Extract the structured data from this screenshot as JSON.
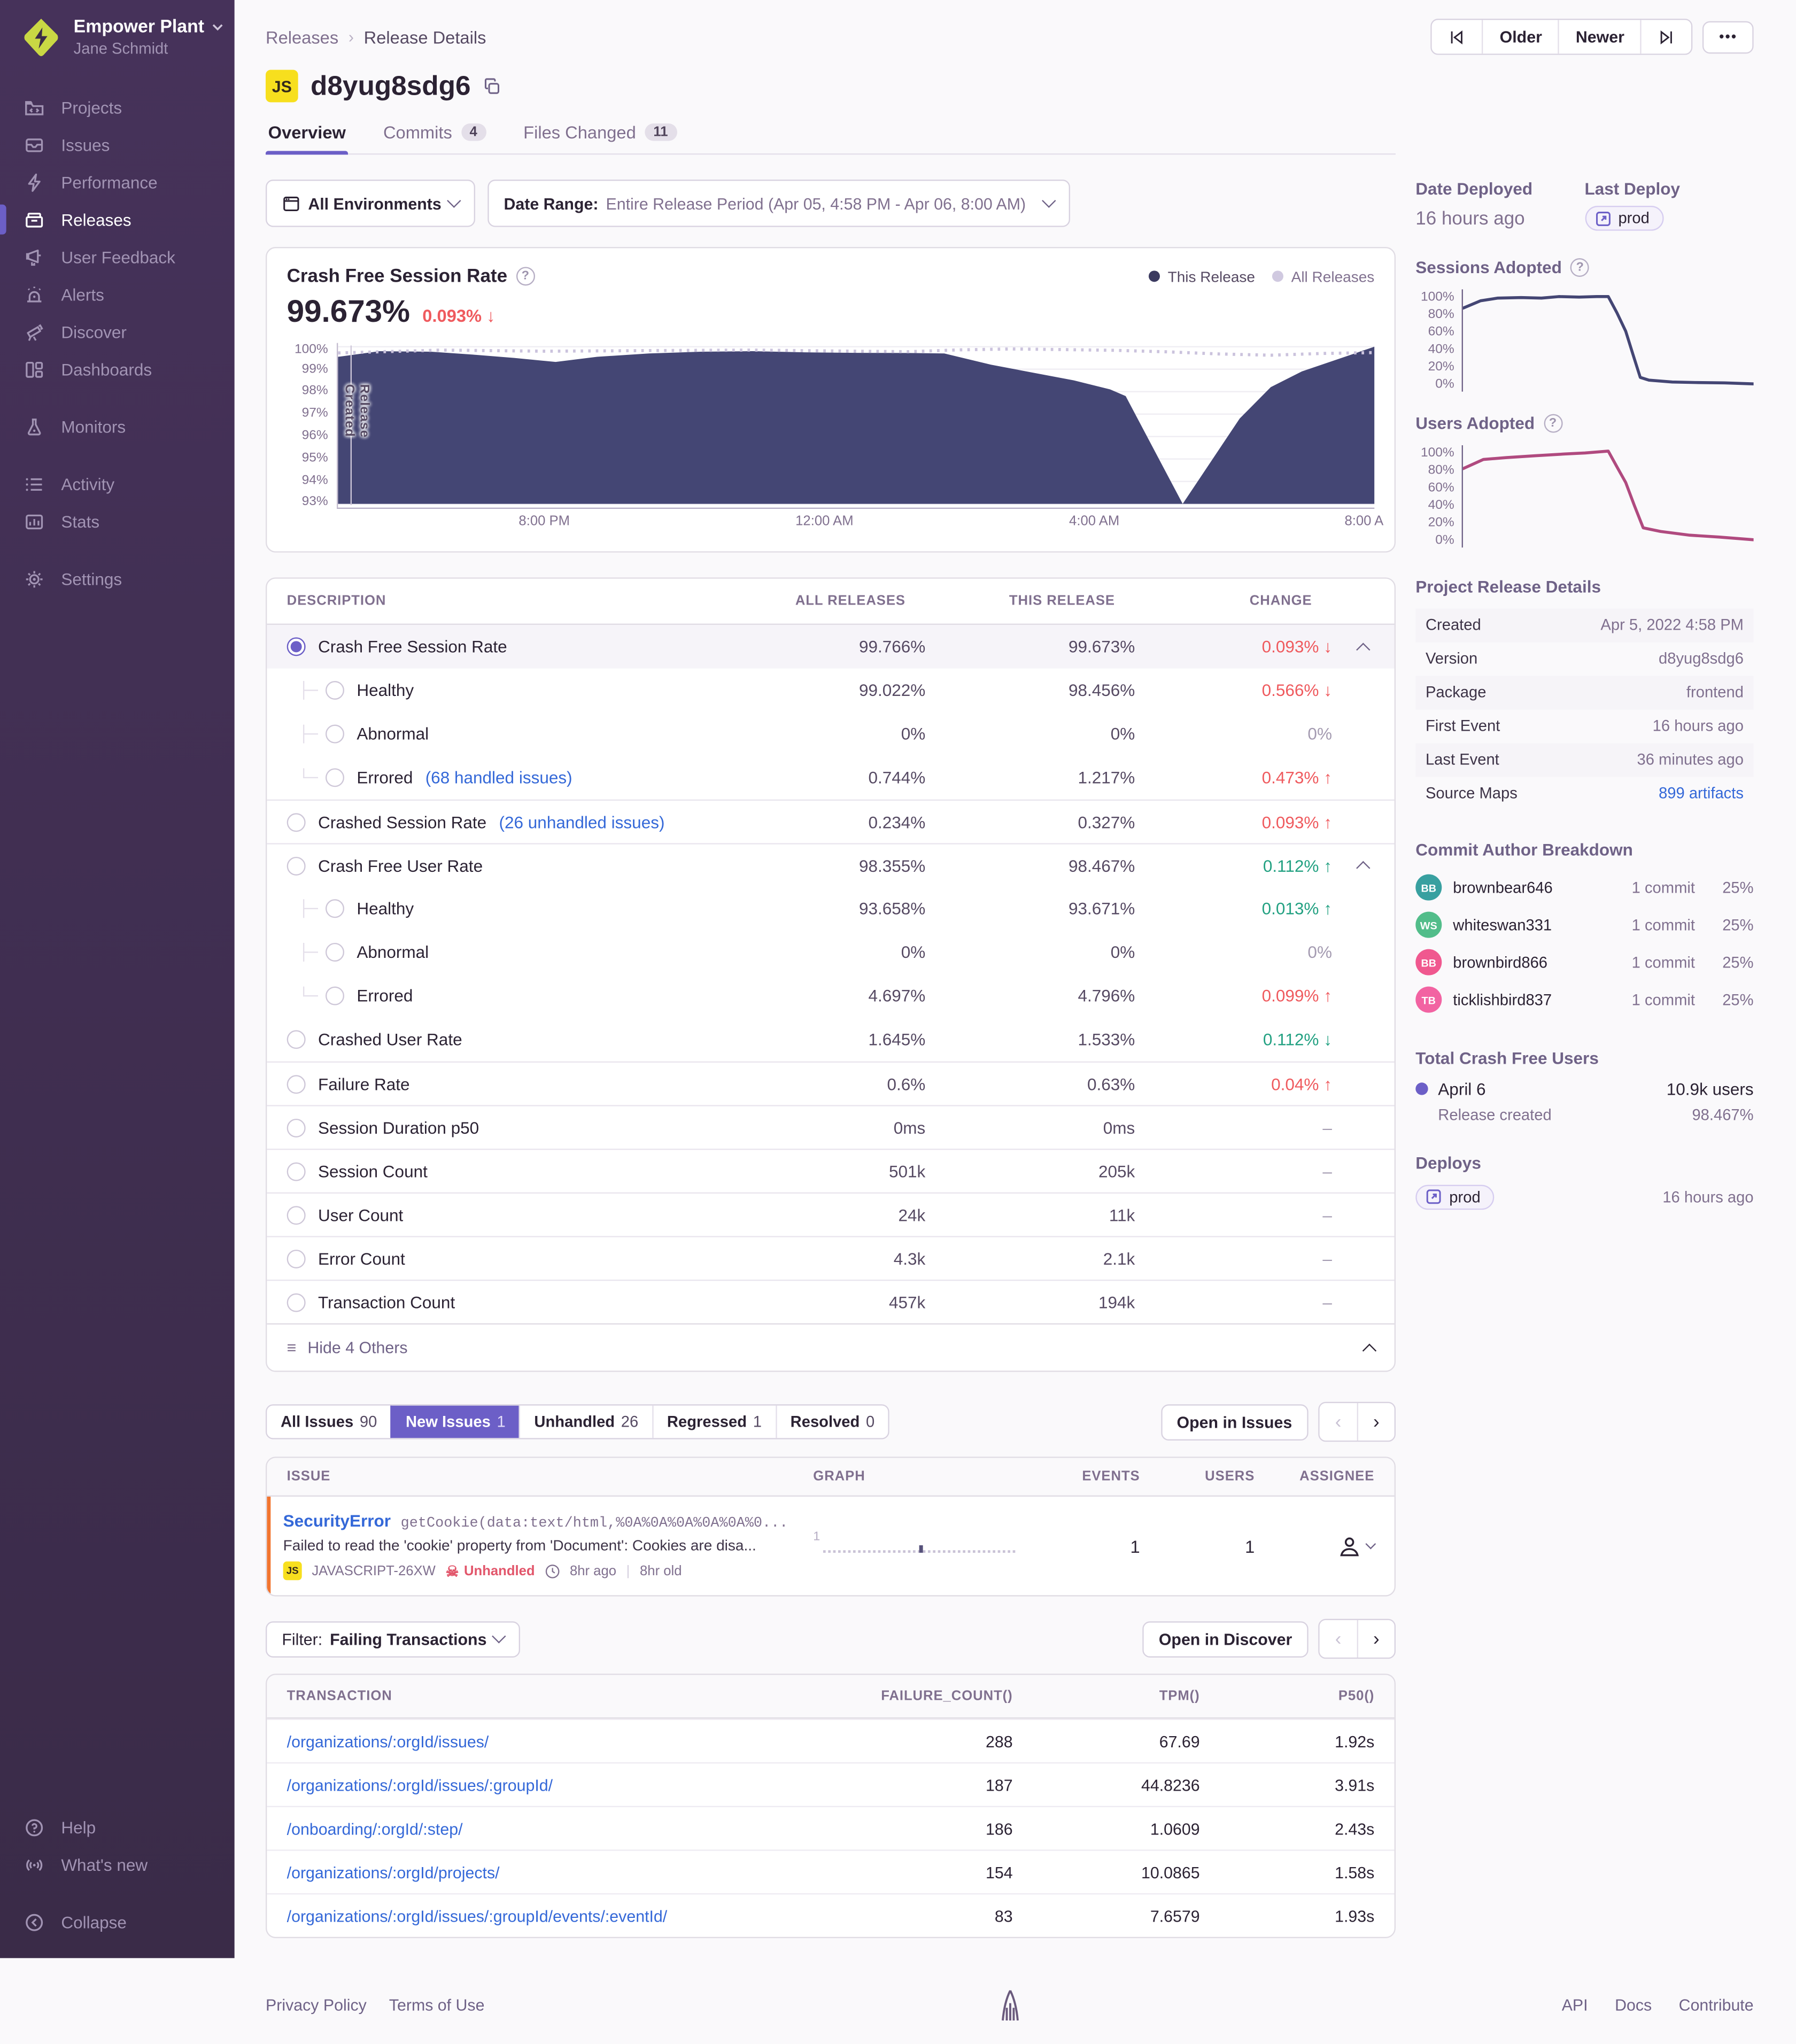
{
  "icons": {
    "more": "•••",
    "skull": "☠",
    "hide_list": "≡",
    "prev": "‹",
    "next": "›",
    "question": "?"
  },
  "sidebar": {
    "org_name": "Empower Plant",
    "user_name": "Jane Schmidt",
    "items": [
      {
        "label": "Projects"
      },
      {
        "label": "Issues"
      },
      {
        "label": "Performance"
      },
      {
        "label": "Releases"
      },
      {
        "label": "User Feedback"
      },
      {
        "label": "Alerts"
      },
      {
        "label": "Discover"
      },
      {
        "label": "Dashboards"
      },
      {
        "label": "Monitors"
      },
      {
        "label": "Activity"
      },
      {
        "label": "Stats"
      },
      {
        "label": "Settings"
      }
    ],
    "help": "Help",
    "whats_new": "What's new",
    "collapse": "Collapse"
  },
  "header": {
    "breadcrumb_1": "Releases",
    "breadcrumb_2": "Release Details",
    "older": "Older",
    "newer": "Newer",
    "project_badge": "JS",
    "title": "d8yug8sdg6",
    "tab_overview": "Overview",
    "tab_commits": "Commits",
    "tab_commits_count": "4",
    "tab_files": "Files Changed",
    "tab_files_count": "11"
  },
  "filters": {
    "environments": "All Environments",
    "date_label": "Date Range:",
    "date_value": "Entire Release Period (Apr 05, 4:58 PM - Apr 06, 8:00 AM)"
  },
  "session_chart": {
    "title": "Crash Free Session Rate",
    "big_value": "99.673%",
    "delta": "0.093% ↓",
    "legend_this": "This Release",
    "legend_all": "All Releases",
    "annotation": "Release Created"
  },
  "chart_data": {
    "session_rate": {
      "type": "area",
      "ylim": [
        93,
        100
      ],
      "yticks": [
        "100%",
        "99%",
        "98%",
        "97%",
        "96%",
        "95%",
        "94%",
        "93%"
      ],
      "xticks": [
        "8:00 PM",
        "12:00 AM",
        "4:00 AM",
        "8:00 A"
      ],
      "series": [
        {
          "name": "This Release",
          "color": "#444674",
          "points": [
            [
              0,
              99.55
            ],
            [
              0.04,
              99.8
            ],
            [
              0.09,
              99.78
            ],
            [
              0.13,
              99.65
            ],
            [
              0.17,
              99.5
            ],
            [
              0.21,
              99.32
            ],
            [
              0.25,
              99.55
            ],
            [
              0.3,
              99.7
            ],
            [
              0.35,
              99.78
            ],
            [
              0.4,
              99.8
            ],
            [
              0.45,
              99.75
            ],
            [
              0.5,
              99.73
            ],
            [
              0.55,
              99.72
            ],
            [
              0.585,
              99.7
            ],
            [
              0.63,
              99.2
            ],
            [
              0.67,
              98.85
            ],
            [
              0.71,
              98.5
            ],
            [
              0.745,
              98.1
            ],
            [
              0.76,
              97.8
            ],
            [
              0.815,
              93.0
            ],
            [
              0.87,
              96.8
            ],
            [
              0.9,
              98.2
            ],
            [
              0.93,
              98.9
            ],
            [
              1,
              100
            ]
          ]
        },
        {
          "name": "All Releases",
          "color": "#cbc3dd",
          "style": "dotted",
          "points": [
            [
              0,
              99.72
            ],
            [
              0.1,
              99.85
            ],
            [
              0.2,
              99.8
            ],
            [
              0.3,
              99.83
            ],
            [
              0.4,
              99.85
            ],
            [
              0.5,
              99.8
            ],
            [
              0.55,
              99.78
            ],
            [
              0.6,
              99.86
            ],
            [
              0.65,
              99.9
            ],
            [
              0.7,
              99.87
            ],
            [
              0.75,
              99.84
            ],
            [
              0.8,
              99.77
            ],
            [
              0.85,
              99.68
            ],
            [
              0.9,
              99.62
            ],
            [
              0.95,
              99.7
            ],
            [
              1,
              99.74
            ]
          ]
        }
      ]
    },
    "sessions_adopted": {
      "type": "line",
      "color": "#444674",
      "ylim": [
        0,
        100
      ],
      "yticks": [
        "100%",
        "80%",
        "60%",
        "40%",
        "20%",
        "0%"
      ],
      "points": [
        [
          0,
          85
        ],
        [
          0.06,
          93
        ],
        [
          0.12,
          96
        ],
        [
          0.2,
          96.5
        ],
        [
          0.27,
          96
        ],
        [
          0.33,
          97.5
        ],
        [
          0.4,
          97
        ],
        [
          0.46,
          97.5
        ],
        [
          0.5,
          97.5
        ],
        [
          0.53,
          80
        ],
        [
          0.56,
          60
        ],
        [
          0.585,
          35
        ],
        [
          0.61,
          10
        ],
        [
          0.64,
          7
        ],
        [
          0.72,
          5
        ],
        [
          0.8,
          4.5
        ],
        [
          0.9,
          4
        ],
        [
          1,
          3
        ]
      ]
    },
    "users_adopted": {
      "type": "line",
      "color": "#b04a7f",
      "ylim": [
        0,
        100
      ],
      "yticks": [
        "100%",
        "80%",
        "60%",
        "40%",
        "20%",
        "0%"
      ],
      "points": [
        [
          0,
          80
        ],
        [
          0.07,
          90
        ],
        [
          0.15,
          92
        ],
        [
          0.25,
          94
        ],
        [
          0.35,
          96
        ],
        [
          0.42,
          97
        ],
        [
          0.5,
          99
        ],
        [
          0.53,
          82
        ],
        [
          0.56,
          65
        ],
        [
          0.59,
          40
        ],
        [
          0.62,
          16
        ],
        [
          0.68,
          12
        ],
        [
          0.78,
          8
        ],
        [
          0.88,
          6
        ],
        [
          1,
          3
        ]
      ]
    }
  },
  "metrics_table": {
    "col_description": "DESCRIPTION",
    "col_all": "ALL RELEASES",
    "col_this": "THIS RELEASE",
    "col_change": "CHANGE",
    "rows": [
      {
        "label": "Crash Free Session Rate",
        "all": "99.766%",
        "this": "99.673%",
        "change": "0.093%",
        "dir": "↓"
      },
      {
        "label": "Healthy",
        "all": "99.022%",
        "this": "98.456%",
        "change": "0.566%",
        "dir": "↓"
      },
      {
        "label": "Abnormal",
        "all": "0%",
        "this": "0%",
        "change": "0%",
        "dir": ""
      },
      {
        "label": "Errored",
        "link": "(68 handled issues)",
        "all": "0.744%",
        "this": "1.217%",
        "change": "0.473%",
        "dir": "↑"
      },
      {
        "label": "Crashed Session Rate",
        "link": "(26 unhandled issues)",
        "all": "0.234%",
        "this": "0.327%",
        "change": "0.093%",
        "dir": "↑"
      },
      {
        "label": "Crash Free User Rate",
        "all": "98.355%",
        "this": "98.467%",
        "change": "0.112%",
        "dir": "↑"
      },
      {
        "label": "Healthy",
        "all": "93.658%",
        "this": "93.671%",
        "change": "0.013%",
        "dir": "↑"
      },
      {
        "label": "Abnormal",
        "all": "0%",
        "this": "0%",
        "change": "0%",
        "dir": ""
      },
      {
        "label": "Errored",
        "all": "4.697%",
        "this": "4.796%",
        "change": "0.099%",
        "dir": "↑"
      },
      {
        "label": "Crashed User Rate",
        "all": "1.645%",
        "this": "1.533%",
        "change": "0.112%",
        "dir": "↓"
      },
      {
        "label": "Failure Rate",
        "all": "0.6%",
        "this": "0.63%",
        "change": "0.04%",
        "dir": "↑"
      },
      {
        "label": "Session Duration p50",
        "all": "0ms",
        "this": "0ms",
        "change": "–",
        "dir": ""
      },
      {
        "label": "Session Count",
        "all": "501k",
        "this": "205k",
        "change": "–",
        "dir": ""
      },
      {
        "label": "User Count",
        "all": "24k",
        "this": "11k",
        "change": "–",
        "dir": ""
      },
      {
        "label": "Error Count",
        "all": "4.3k",
        "this": "2.1k",
        "change": "–",
        "dir": ""
      },
      {
        "label": "Transaction Count",
        "all": "457k",
        "this": "194k",
        "change": "–",
        "dir": ""
      }
    ],
    "footer": "Hide 4 Others"
  },
  "issues": {
    "tab_all": "All Issues",
    "tab_all_count": "90",
    "tab_new": "New Issues",
    "tab_new_count": "1",
    "tab_unhandled": "Unhandled",
    "tab_unhandled_count": "26",
    "tab_regressed": "Regressed",
    "tab_regressed_count": "1",
    "tab_resolved": "Resolved",
    "tab_resolved_count": "0",
    "open_button": "Open in Issues",
    "col_issue": "ISSUE",
    "col_graph": "GRAPH",
    "col_events": "EVENTS",
    "col_users": "USERS",
    "col_assignee": "ASSIGNEE",
    "row": {
      "error_type": "SecurityError",
      "error_detail": "getCookie(data:text/html,%0A%0A%0A%0A%0A%0...",
      "description": "Failed to read the 'cookie' property from 'Document': Cookies are disa...",
      "project_badge": "JS",
      "short_id": "JAVASCRIPT-26XW",
      "unhandled": "Unhandled",
      "age": "8hr ago",
      "age_old": "8hr old",
      "graph_value": "1",
      "events": "1",
      "users": "1"
    }
  },
  "transactions": {
    "filter_label": "Filter:",
    "filter_value": "Failing Transactions",
    "open_button": "Open in Discover",
    "col_transaction": "TRANSACTION",
    "col_failure": "FAILURE_COUNT()",
    "col_tpm": "TPM()",
    "col_p50": "P50()",
    "rows": [
      {
        "transaction": "/organizations/:orgId/issues/",
        "failure_count": "288",
        "tpm": "67.69",
        "p50": "1.92s"
      },
      {
        "transaction": "/organizations/:orgId/issues/:groupId/",
        "failure_count": "187",
        "tpm": "44.8236",
        "p50": "3.91s"
      },
      {
        "transaction": "/onboarding/:orgId/:step/",
        "failure_count": "186",
        "tpm": "1.0609",
        "p50": "2.43s"
      },
      {
        "transaction": "/organizations/:orgId/projects/",
        "failure_count": "154",
        "tpm": "10.0865",
        "p50": "1.58s"
      },
      {
        "transaction": "/organizations/:orgId/issues/:groupId/events/:eventId/",
        "failure_count": "83",
        "tpm": "7.6579",
        "p50": "1.93s"
      }
    ]
  },
  "right_panel": {
    "date_deployed_label": "Date Deployed",
    "date_deployed_value": "16 hours ago",
    "last_deploy_label": "Last Deploy",
    "last_deploy_badge": "prod",
    "sessions_adopted_label": "Sessions Adopted",
    "users_adopted_label": "Users Adopted",
    "details_title": "Project Release Details",
    "details": [
      {
        "label": "Created",
        "value": "Apr 5, 2022 4:58 PM"
      },
      {
        "label": "Version",
        "value": "d8yug8sdg6"
      },
      {
        "label": "Package",
        "value": "frontend"
      },
      {
        "label": "First Event",
        "value": "16 hours ago"
      },
      {
        "label": "Last Event",
        "value": "36 minutes ago"
      },
      {
        "label": "Source Maps",
        "value": "899 artifacts"
      }
    ],
    "authors_title": "Commit Author Breakdown",
    "authors": [
      {
        "initials": "BB",
        "color": "#38a0a0",
        "name": "brownbear646",
        "commits": "1 commit",
        "percent": "25%"
      },
      {
        "initials": "WS",
        "color": "#52bd8a",
        "name": "whiteswan331",
        "commits": "1 commit",
        "percent": "25%"
      },
      {
        "initials": "BB",
        "color": "#f0588f",
        "name": "brownbird866",
        "commits": "1 commit",
        "percent": "25%"
      },
      {
        "initials": "TB",
        "color": "#f263a2",
        "name": "ticklishbird837",
        "commits": "1 commit",
        "percent": "25%"
      }
    ],
    "crash_free_title": "Total Crash Free Users",
    "crash_free_date": "April 6",
    "crash_free_users": "10.9k users",
    "crash_free_created_label": "Release created",
    "crash_free_percent": "98.467%",
    "deploys_title": "Deploys",
    "deploy_badge": "prod",
    "deploy_time": "16 hours ago"
  },
  "footer": {
    "privacy": "Privacy Policy",
    "terms": "Terms of Use",
    "api": "API",
    "docs": "Docs",
    "contribute": "Contribute"
  }
}
